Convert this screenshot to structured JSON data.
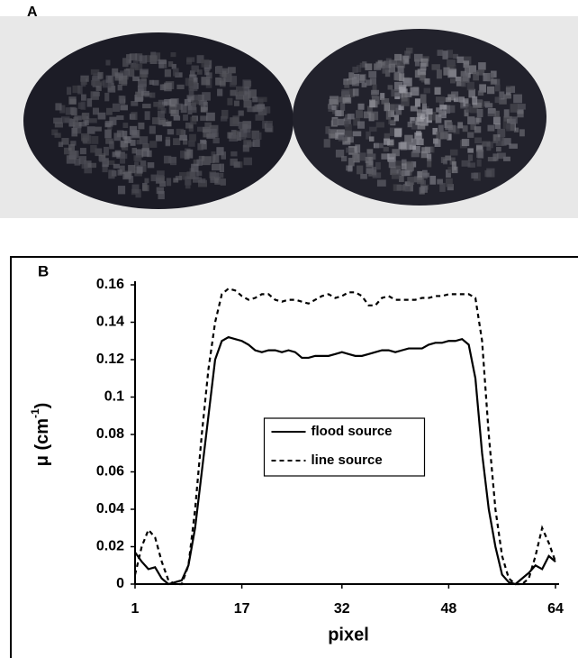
{
  "panel_labels": [
    "A",
    "B"
  ],
  "chart_data": {
    "type": "line",
    "x_label": "pixel",
    "y_label": {
      "text": "μ (cm",
      "superscript": "-1",
      "suffix": ")"
    },
    "x": [
      1,
      2,
      3,
      4,
      5,
      6,
      7,
      8,
      9,
      10,
      11,
      12,
      13,
      14,
      15,
      16,
      17,
      18,
      19,
      20,
      21,
      22,
      23,
      24,
      25,
      26,
      27,
      28,
      29,
      30,
      31,
      32,
      33,
      34,
      35,
      36,
      37,
      38,
      39,
      40,
      41,
      42,
      43,
      44,
      45,
      46,
      47,
      48,
      49,
      50,
      51,
      52,
      53,
      54,
      55,
      56,
      57,
      58,
      59,
      60,
      61,
      62,
      63,
      64
    ],
    "series": [
      {
        "name": "flood source",
        "color": "#000000",
        "dash": "solid",
        "values": [
          0.017,
          0.012,
          0.008,
          0.009,
          0.003,
          0.0,
          0.001,
          0.002,
          0.01,
          0.03,
          0.06,
          0.09,
          0.12,
          0.13,
          0.132,
          0.131,
          0.13,
          0.128,
          0.125,
          0.124,
          0.125,
          0.125,
          0.124,
          0.125,
          0.124,
          0.121,
          0.121,
          0.122,
          0.122,
          0.122,
          0.123,
          0.124,
          0.123,
          0.122,
          0.122,
          0.123,
          0.124,
          0.125,
          0.125,
          0.124,
          0.125,
          0.126,
          0.126,
          0.126,
          0.128,
          0.129,
          0.129,
          0.13,
          0.13,
          0.131,
          0.128,
          0.11,
          0.07,
          0.04,
          0.02,
          0.005,
          0.001,
          0.0,
          0.003,
          0.006,
          0.01,
          0.008,
          0.015,
          0.012
        ]
      },
      {
        "name": "line source",
        "color": "#000000",
        "dash": "dashed",
        "values": [
          0.005,
          0.02,
          0.029,
          0.025,
          0.012,
          0.002,
          0.0,
          0.0,
          0.01,
          0.04,
          0.08,
          0.115,
          0.14,
          0.155,
          0.158,
          0.157,
          0.154,
          0.152,
          0.153,
          0.155,
          0.155,
          0.152,
          0.151,
          0.152,
          0.152,
          0.151,
          0.15,
          0.152,
          0.154,
          0.155,
          0.153,
          0.154,
          0.156,
          0.156,
          0.154,
          0.149,
          0.149,
          0.153,
          0.154,
          0.152,
          0.152,
          0.152,
          0.152,
          0.153,
          0.153,
          0.154,
          0.154,
          0.155,
          0.155,
          0.155,
          0.155,
          0.153,
          0.13,
          0.08,
          0.04,
          0.015,
          0.003,
          0.0,
          0.0,
          0.003,
          0.015,
          0.03,
          0.022,
          0.012
        ]
      }
    ],
    "xlim": [
      1,
      64
    ],
    "xticks": [
      1,
      17,
      32,
      48,
      64
    ],
    "ylim": [
      0,
      0.16
    ],
    "yticks": [
      0,
      0.02,
      0.04,
      0.06,
      0.08,
      0.1,
      0.12,
      0.14,
      0.16
    ],
    "legend": "center",
    "grid": false
  }
}
